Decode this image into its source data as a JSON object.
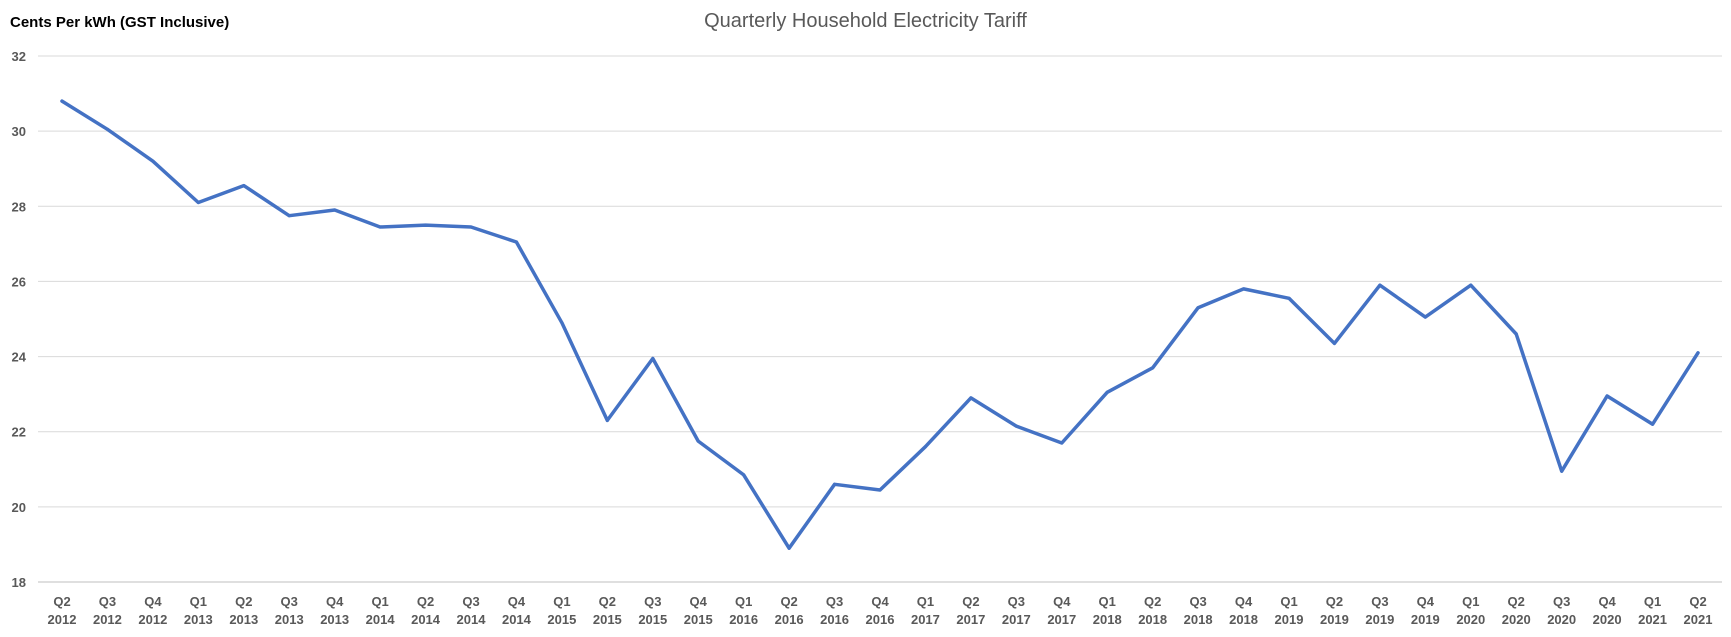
{
  "chart_data": {
    "type": "line",
    "title": "Quarterly Household Electricity Tariff",
    "ylabel": "Cents Per kWh (GST Inclusive)",
    "xlabel": "",
    "ylim": [
      18,
      32
    ],
    "yticks": [
      18,
      20,
      22,
      24,
      26,
      28,
      30,
      32
    ],
    "grid": true,
    "color": "#4472C4",
    "categories": [
      [
        "Q2",
        "2012"
      ],
      [
        "Q3",
        "2012"
      ],
      [
        "Q4",
        "2012"
      ],
      [
        "Q1",
        "2013"
      ],
      [
        "Q2",
        "2013"
      ],
      [
        "Q3",
        "2013"
      ],
      [
        "Q4",
        "2013"
      ],
      [
        "Q1",
        "2014"
      ],
      [
        "Q2",
        "2014"
      ],
      [
        "Q3",
        "2014"
      ],
      [
        "Q4",
        "2014"
      ],
      [
        "Q1",
        "2015"
      ],
      [
        "Q2",
        "2015"
      ],
      [
        "Q3",
        "2015"
      ],
      [
        "Q4",
        "2015"
      ],
      [
        "Q1",
        "2016"
      ],
      [
        "Q2",
        "2016"
      ],
      [
        "Q3",
        "2016"
      ],
      [
        "Q4",
        "2016"
      ],
      [
        "Q1",
        "2017"
      ],
      [
        "Q2",
        "2017"
      ],
      [
        "Q3",
        "2017"
      ],
      [
        "Q4",
        "2017"
      ],
      [
        "Q1",
        "2018"
      ],
      [
        "Q2",
        "2018"
      ],
      [
        "Q3",
        "2018"
      ],
      [
        "Q4",
        "2018"
      ],
      [
        "Q1",
        "2019"
      ],
      [
        "Q2",
        "2019"
      ],
      [
        "Q3",
        "2019"
      ],
      [
        "Q4",
        "2019"
      ],
      [
        "Q1",
        "2020"
      ],
      [
        "Q2",
        "2020"
      ],
      [
        "Q3",
        "2020"
      ],
      [
        "Q4",
        "2020"
      ],
      [
        "Q1",
        "2021"
      ],
      [
        "Q2",
        "2021"
      ]
    ],
    "values": [
      30.8,
      30.05,
      29.2,
      28.1,
      28.55,
      27.75,
      27.9,
      27.45,
      27.5,
      27.45,
      27.05,
      24.9,
      22.3,
      23.95,
      21.75,
      20.85,
      18.9,
      20.6,
      20.45,
      21.6,
      22.9,
      22.15,
      21.7,
      23.05,
      23.7,
      25.3,
      25.8,
      25.55,
      24.35,
      25.9,
      25.05,
      25.9,
      24.6,
      20.95,
      22.95,
      22.2,
      24.1
    ]
  }
}
